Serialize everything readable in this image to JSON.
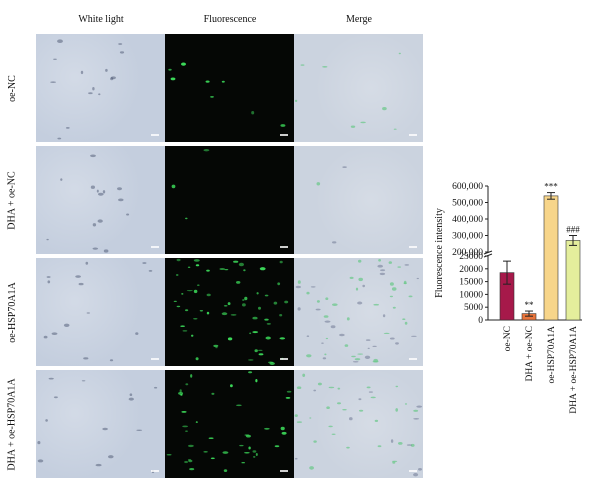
{
  "columns": [
    "White light",
    "Fluorescence",
    "Merge"
  ],
  "rows": [
    "oe-NC",
    "DHA + oe-NC",
    "oe-HSP70A1A",
    "DHA + oe-HSP70A1A"
  ],
  "chart_data": {
    "type": "bar",
    "ylabel": "Fluorescence intensity",
    "axis_break": true,
    "lower_axis": {
      "ylim": [
        0,
        25000
      ],
      "ticks": [
        "0",
        "5000",
        "10000",
        "15000",
        "20000",
        "25000"
      ]
    },
    "upper_axis": {
      "ylim": [
        200000,
        600000
      ],
      "ticks": [
        "200,000",
        "300,000",
        "400,000",
        "500,000",
        "600,000"
      ]
    },
    "categories": [
      "oe-NC",
      "DHA + oe-NC",
      "oe-HSP70A1A",
      "DHA + oe-HSP70A1A"
    ],
    "values": [
      18500,
      2500,
      540000,
      270000
    ],
    "errors": [
      4500,
      1000,
      20000,
      30000
    ],
    "significance": [
      "",
      "**",
      "***",
      "###"
    ],
    "colors": [
      "#a6194a",
      "#e8743b",
      "#f7d58a",
      "#e4ee9c"
    ]
  }
}
